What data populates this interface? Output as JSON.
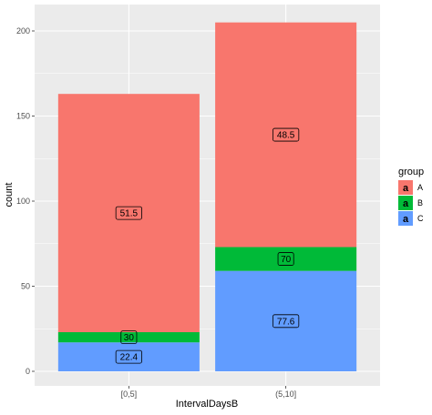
{
  "chart_data": {
    "type": "bar",
    "stacked": true,
    "xlabel": "IntervalDaysB",
    "ylabel": "count",
    "categories": [
      "[0,5]",
      "(5,10]"
    ],
    "ylim": [
      0,
      212
    ],
    "yticks": [
      0,
      50,
      100,
      150,
      200
    ],
    "grid": true,
    "legend": {
      "title": "group",
      "position": "right",
      "key_glyph": "a"
    },
    "series": [
      {
        "name": "C",
        "color": "#619CFF",
        "values": [
          17,
          59
        ],
        "labels": [
          "22.4",
          "77.6"
        ]
      },
      {
        "name": "B",
        "color": "#00BA38",
        "values": [
          6,
          14
        ],
        "labels": [
          "30",
          "70"
        ]
      },
      {
        "name": "A",
        "color": "#F8766D",
        "values": [
          140,
          132
        ],
        "labels": [
          "51.5",
          "48.5"
        ]
      }
    ]
  }
}
